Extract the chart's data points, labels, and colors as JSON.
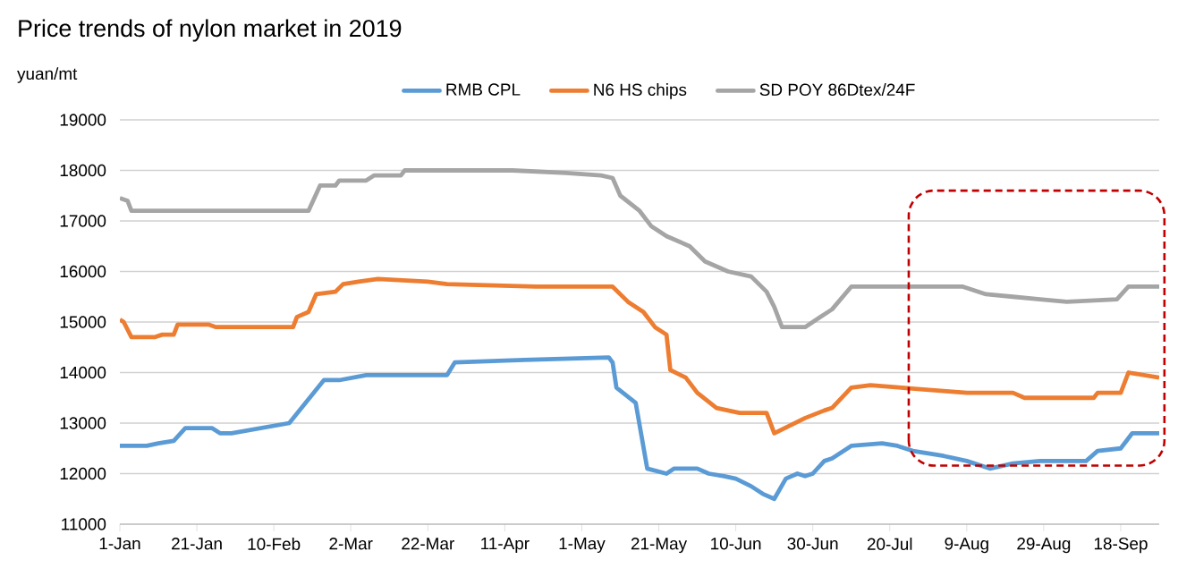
{
  "chart_data": {
    "type": "line",
    "title": "Price trends of nylon market in 2019",
    "ylabel": "yuan/mt",
    "xlim": [
      "2019-01-01",
      "2019-09-28"
    ],
    "xticks": [
      {
        "value": "2019-01-01",
        "label": "1-Jan"
      },
      {
        "value": "2019-01-21",
        "label": "21-Jan"
      },
      {
        "value": "2019-02-10",
        "label": "10-Feb"
      },
      {
        "value": "2019-03-02",
        "label": "2-Mar"
      },
      {
        "value": "2019-03-22",
        "label": "22-Mar"
      },
      {
        "value": "2019-04-11",
        "label": "11-Apr"
      },
      {
        "value": "2019-05-01",
        "label": "1-May"
      },
      {
        "value": "2019-05-21",
        "label": "21-May"
      },
      {
        "value": "2019-06-10",
        "label": "10-Jun"
      },
      {
        "value": "2019-06-30",
        "label": "30-Jun"
      },
      {
        "value": "2019-07-20",
        "label": "20-Jul"
      },
      {
        "value": "2019-08-09",
        "label": "9-Aug"
      },
      {
        "value": "2019-08-29",
        "label": "29-Aug"
      },
      {
        "value": "2019-09-18",
        "label": "18-Sep"
      }
    ],
    "ylim": [
      11000,
      19000
    ],
    "yticks": [
      11000,
      12000,
      13000,
      14000,
      15000,
      16000,
      17000,
      18000,
      19000
    ],
    "grid": "y",
    "legend": "top",
    "series": [
      {
        "name": "RMB CPL",
        "color": "#5b9bd5",
        "x": [
          "2019-01-01",
          "2019-01-08",
          "2019-01-11",
          "2019-01-15",
          "2019-01-18",
          "2019-01-25",
          "2019-01-27",
          "2019-01-30",
          "2019-02-14",
          "2019-02-23",
          "2019-02-27",
          "2019-03-06",
          "2019-03-27",
          "2019-03-29",
          "2019-04-16",
          "2019-05-08",
          "2019-05-09",
          "2019-05-10",
          "2019-05-15",
          "2019-05-18",
          "2019-05-23",
          "2019-05-25",
          "2019-05-31",
          "2019-06-03",
          "2019-06-07",
          "2019-06-10",
          "2019-06-14",
          "2019-06-17",
          "2019-06-20",
          "2019-06-23",
          "2019-06-26",
          "2019-06-28",
          "2019-06-30",
          "2019-07-03",
          "2019-07-05",
          "2019-07-10",
          "2019-07-18",
          "2019-07-22",
          "2019-07-26",
          "2019-08-03",
          "2019-08-09",
          "2019-08-15",
          "2019-08-21",
          "2019-08-28",
          "2019-09-09",
          "2019-09-12",
          "2019-09-18",
          "2019-09-21",
          "2019-09-28"
        ],
        "values": [
          12550,
          12550,
          12600,
          12650,
          12900,
          12900,
          12800,
          12800,
          13000,
          13850,
          13850,
          13950,
          13950,
          14200,
          14250,
          14300,
          14200,
          13700,
          13400,
          12100,
          12000,
          12100,
          12100,
          12000,
          11950,
          11900,
          11750,
          11600,
          11500,
          11900,
          12000,
          11950,
          12000,
          12250,
          12300,
          12550,
          12600,
          12550,
          12450,
          12350,
          12250,
          12100,
          12200,
          12250,
          12250,
          12450,
          12500,
          12800,
          12800
        ]
      },
      {
        "name": "N6 HS chips",
        "color": "#ed7d31",
        "x": [
          "2019-01-01",
          "2019-01-02",
          "2019-01-04",
          "2019-01-10",
          "2019-01-12",
          "2019-01-15",
          "2019-01-16",
          "2019-01-24",
          "2019-01-26",
          "2019-02-15",
          "2019-02-16",
          "2019-02-19",
          "2019-02-21",
          "2019-02-26",
          "2019-02-28",
          "2019-03-04",
          "2019-03-09",
          "2019-03-22",
          "2019-03-27",
          "2019-04-19",
          "2019-05-09",
          "2019-05-13",
          "2019-05-17",
          "2019-05-20",
          "2019-05-23",
          "2019-05-24",
          "2019-05-28",
          "2019-05-31",
          "2019-06-05",
          "2019-06-11",
          "2019-06-18",
          "2019-06-20",
          "2019-06-28",
          "2019-07-03",
          "2019-07-05",
          "2019-07-10",
          "2019-07-15",
          "2019-07-23",
          "2019-08-09",
          "2019-08-21",
          "2019-08-24",
          "2019-09-11",
          "2019-09-12",
          "2019-09-18",
          "2019-09-20",
          "2019-09-28"
        ],
        "values": [
          15050,
          15000,
          14700,
          14700,
          14750,
          14750,
          14950,
          14950,
          14900,
          14900,
          15100,
          15200,
          15550,
          15600,
          15750,
          15800,
          15850,
          15800,
          15750,
          15700,
          15700,
          15400,
          15200,
          14900,
          14750,
          14050,
          13900,
          13600,
          13300,
          13200,
          13200,
          12800,
          13100,
          13250,
          13300,
          13700,
          13750,
          13700,
          13600,
          13600,
          13500,
          13500,
          13600,
          13600,
          14000,
          13900
        ]
      },
      {
        "name": "SD POY 86Dtex/24F",
        "color": "#a5a5a5",
        "x": [
          "2019-01-01",
          "2019-01-03",
          "2019-01-04",
          "2019-02-19",
          "2019-02-22",
          "2019-02-26",
          "2019-02-27",
          "2019-03-06",
          "2019-03-08",
          "2019-03-15",
          "2019-03-16",
          "2019-04-13",
          "2019-04-27",
          "2019-05-06",
          "2019-05-09",
          "2019-05-11",
          "2019-05-16",
          "2019-05-19",
          "2019-05-23",
          "2019-05-29",
          "2019-06-02",
          "2019-06-08",
          "2019-06-14",
          "2019-06-18",
          "2019-06-20",
          "2019-06-22",
          "2019-06-28",
          "2019-07-02",
          "2019-07-05",
          "2019-07-10",
          "2019-08-08",
          "2019-08-14",
          "2019-08-21",
          "2019-08-28",
          "2019-09-04",
          "2019-09-17",
          "2019-09-20",
          "2019-09-28"
        ],
        "values": [
          17450,
          17400,
          17200,
          17200,
          17700,
          17700,
          17800,
          17800,
          17900,
          17900,
          18000,
          18000,
          17950,
          17900,
          17850,
          17500,
          17200,
          16900,
          16700,
          16500,
          16200,
          16000,
          15900,
          15600,
          15300,
          14900,
          14900,
          15100,
          15250,
          15700,
          15700,
          15550,
          15500,
          15450,
          15400,
          15450,
          15700,
          15700
        ]
      }
    ]
  }
}
